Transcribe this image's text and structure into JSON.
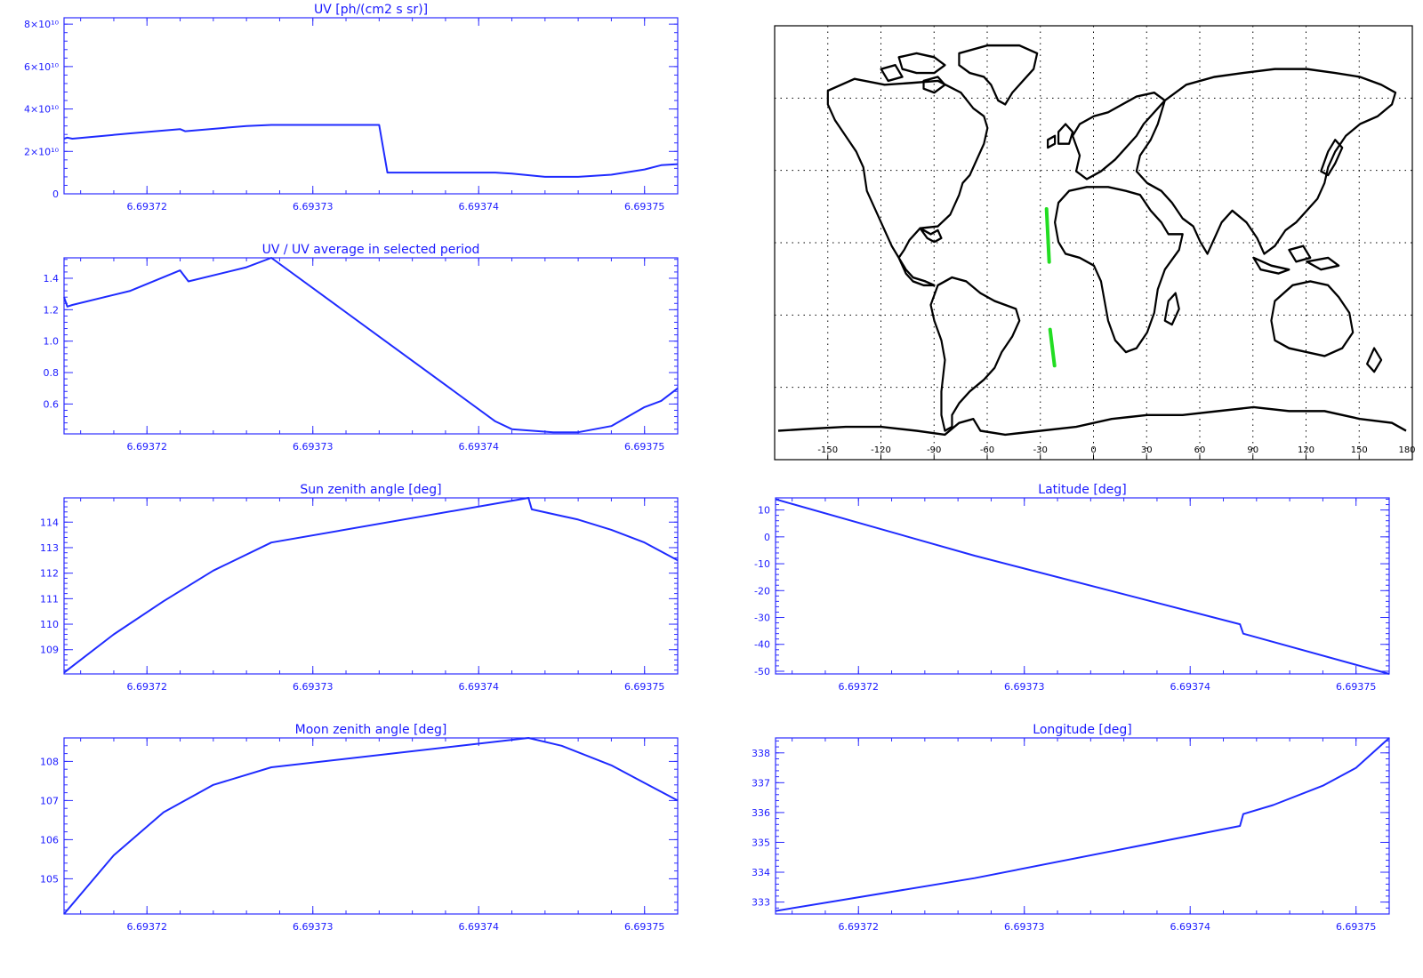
{
  "colors": {
    "axis": "#2d2dff",
    "series": "#1f2bff",
    "track": "#22dd22",
    "coast": "#000000"
  },
  "chart_data": [
    {
      "id": "uv",
      "type": "line",
      "title": "UV [ph/(cm2 s sr)]",
      "xlim": [
        6.693715,
        6.693752
      ],
      "ylim": [
        0,
        83000000000.0
      ],
      "xticks": [
        6.69372,
        6.69373,
        6.69374,
        6.69375
      ],
      "xtick_labels": [
        "6.69372",
        "6.69373",
        "6.69374",
        "6.69375"
      ],
      "yticks": [
        0,
        20000000000.0,
        40000000000.0,
        60000000000.0,
        80000000000.0
      ],
      "ytick_labels": [
        "0",
        "2×10¹⁰",
        "4×10¹⁰",
        "6×10¹⁰",
        "8×10¹⁰"
      ],
      "x": [
        6.693715,
        6.6937152,
        6.6937155,
        6.693719,
        6.693722,
        6.6937223,
        6.693726,
        6.6937275,
        6.693734,
        6.6937345,
        6.693738,
        6.693741,
        6.693742,
        6.693744,
        6.693746,
        6.693748,
        6.69375,
        6.693751,
        6.693752
      ],
      "y": [
        26000000000.0,
        26500000000.0,
        26000000000.0,
        28500000000.0,
        30500000000.0,
        29500000000.0,
        32000000000.0,
        32500000000.0,
        32500000000.0,
        10000000000.0,
        10000000000.0,
        10000000000.0,
        9500000000.0,
        8000000000.0,
        8000000000.0,
        9000000000.0,
        11500000000.0,
        13500000000.0,
        14000000000.0
      ]
    },
    {
      "id": "uv-ratio",
      "type": "line",
      "title": "UV / UV average in selected period",
      "xlim": [
        6.693715,
        6.693752
      ],
      "ylim": [
        0.41,
        1.53
      ],
      "xticks": [
        6.69372,
        6.69373,
        6.69374,
        6.69375
      ],
      "xtick_labels": [
        "6.69372",
        "6.69373",
        "6.69374",
        "6.69375"
      ],
      "yticks": [
        0.6,
        0.8,
        1.0,
        1.2,
        1.4
      ],
      "ytick_labels": [
        "0.6",
        "0.8",
        "1.0",
        "1.2",
        "1.4"
      ],
      "x": [
        6.693715,
        6.6937152,
        6.6937155,
        6.693719,
        6.693722,
        6.6937225,
        6.693726,
        6.6937275,
        6.693741,
        6.693742,
        6.6937445,
        6.693746,
        6.693748,
        6.69375,
        6.693751,
        6.693752
      ],
      "y": [
        1.28,
        1.22,
        1.23,
        1.32,
        1.45,
        1.38,
        1.47,
        1.53,
        0.49,
        0.44,
        0.42,
        0.42,
        0.46,
        0.58,
        0.62,
        0.7
      ]
    },
    {
      "id": "sun-zenith",
      "type": "line",
      "title": "Sun zenith angle [deg]",
      "xlim": [
        6.693715,
        6.693752
      ],
      "ylim": [
        108.05,
        114.95
      ],
      "xticks": [
        6.69372,
        6.69373,
        6.69374,
        6.69375
      ],
      "xtick_labels": [
        "6.69372",
        "6.69373",
        "6.69374",
        "6.69375"
      ],
      "yticks": [
        109,
        110,
        111,
        112,
        113,
        114
      ],
      "ytick_labels": [
        "109",
        "110",
        "111",
        "112",
        "113",
        "114"
      ],
      "x": [
        6.693715,
        6.693718,
        6.693721,
        6.693724,
        6.6937275,
        6.693743,
        6.6937432,
        6.693746,
        6.693748,
        6.69375,
        6.693752
      ],
      "y": [
        108.1,
        109.6,
        110.9,
        112.1,
        113.2,
        114.95,
        114.5,
        114.1,
        113.7,
        113.2,
        112.5
      ]
    },
    {
      "id": "moon-zenith",
      "type": "line",
      "title": "Moon zenith angle [deg]",
      "xlim": [
        6.693715,
        6.693752
      ],
      "ylim": [
        104.1,
        108.6
      ],
      "xticks": [
        6.69372,
        6.69373,
        6.69374,
        6.69375
      ],
      "xtick_labels": [
        "6.69372",
        "6.69373",
        "6.69374",
        "6.69375"
      ],
      "yticks": [
        105,
        106,
        107,
        108
      ],
      "ytick_labels": [
        "105",
        "106",
        "107",
        "108"
      ],
      "x": [
        6.693715,
        6.693718,
        6.693721,
        6.693724,
        6.6937275,
        6.693743,
        6.693745,
        6.693748,
        6.69375,
        6.693752
      ],
      "y": [
        104.1,
        105.6,
        106.7,
        107.4,
        107.85,
        108.6,
        108.4,
        107.9,
        107.45,
        107.0
      ]
    },
    {
      "id": "latitude",
      "type": "line",
      "title": "Latitude [deg]",
      "xlim": [
        6.693715,
        6.693752
      ],
      "ylim": [
        -51,
        14.5
      ],
      "xticks": [
        6.69372,
        6.69373,
        6.69374,
        6.69375
      ],
      "xtick_labels": [
        "6.69372",
        "6.69373",
        "6.69374",
        "6.69375"
      ],
      "yticks": [
        -50,
        -40,
        -30,
        -20,
        -10,
        0,
        10
      ],
      "ytick_labels": [
        "-50",
        "-40",
        "-30",
        "-20",
        "-10",
        "0",
        "10"
      ],
      "x": [
        6.693715,
        6.693727,
        6.693743,
        6.6937432,
        6.693752
      ],
      "y": [
        14,
        -7,
        -32.5,
        -36,
        -51
      ]
    },
    {
      "id": "longitude",
      "type": "line",
      "title": "Longitude [deg]",
      "xlim": [
        6.693715,
        6.693752
      ],
      "ylim": [
        332.6,
        338.5
      ],
      "xticks": [
        6.69372,
        6.69373,
        6.69374,
        6.69375
      ],
      "xtick_labels": [
        "6.69372",
        "6.69373",
        "6.69374",
        "6.69375"
      ],
      "yticks": [
        333,
        334,
        335,
        336,
        337,
        338
      ],
      "ytick_labels": [
        "333",
        "334",
        "335",
        "336",
        "337",
        "338"
      ],
      "x": [
        6.693715,
        6.693727,
        6.693743,
        6.6937432,
        6.693745,
        6.693748,
        6.69375,
        6.693752
      ],
      "y": [
        332.7,
        333.8,
        335.55,
        335.95,
        336.25,
        336.9,
        337.5,
        338.5
      ]
    }
  ],
  "map": {
    "lon_ticks": [
      -150,
      -120,
      -90,
      -60,
      -30,
      0,
      30,
      60,
      90,
      120,
      150,
      180
    ],
    "lon_tick_labels": [
      "-150",
      "-120",
      "-90",
      "-60",
      "-30",
      "0",
      "30",
      "60",
      "90",
      "120",
      "150",
      "180"
    ],
    "lat_grid": [
      60,
      30,
      0,
      -30,
      -60
    ],
    "track_segments": [
      {
        "lon": [
          -26.5,
          -25.0
        ],
        "lat": [
          14,
          -8
        ]
      },
      {
        "lon": [
          -24.5,
          -22.0
        ],
        "lat": [
          -36,
          -51
        ]
      }
    ]
  }
}
